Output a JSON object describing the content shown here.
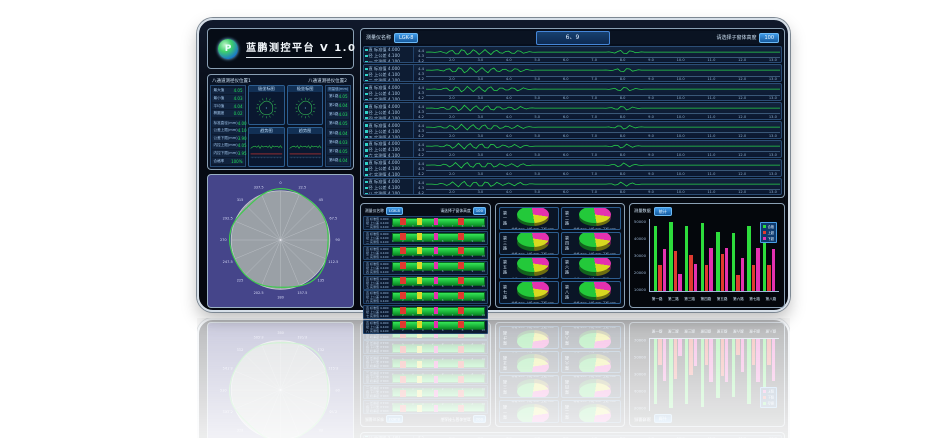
{
  "app": {
    "title": "蓝鹏测控平台",
    "version": "V 1.0"
  },
  "colors": {
    "accent_blue": "#2a7fd4",
    "value_green": "#1fe05a",
    "wave_green": "#27d14b",
    "bar_green": "#2ddd3c",
    "bar_red": "#e03a2f",
    "bar_magenta": "#e431b0",
    "pie_yellow": "#d9d920",
    "radar_bg": "#45458a",
    "radar_circle": "#9aa0a6"
  },
  "wave_panel": {
    "instrument_label": "测量仪名称",
    "instrument_value": "LGK-8",
    "center_value": "6、9",
    "height_label": "请选择子窗体高度",
    "height_value": "100",
    "y_ticks": [
      "4.4",
      "4.3",
      "4.2"
    ],
    "x_ticks": [
      "2.0",
      "3.0",
      "4.0",
      "5.0",
      "6.0",
      "7.0",
      "8.0",
      "9.0",
      "10.0",
      "11.0",
      "12.0",
      "13.0"
    ],
    "channels": [
      {
        "name": "直径一",
        "lines": [
          [
            "标准值",
            "4.000"
          ],
          [
            "上公差",
            "4.100"
          ],
          [
            "实测值",
            "4.100"
          ]
        ]
      },
      {
        "name": "直径二",
        "lines": [
          [
            "标准值",
            "4.000"
          ],
          [
            "上公差",
            "4.100"
          ],
          [
            "实测值",
            "4.100"
          ]
        ]
      },
      {
        "name": "直径三",
        "lines": [
          [
            "标准值",
            "4.000"
          ],
          [
            "上公差",
            "4.100"
          ],
          [
            "实测值",
            "4.100"
          ]
        ]
      },
      {
        "name": "直径四",
        "lines": [
          [
            "标准值",
            "4.000"
          ],
          [
            "上公差",
            "4.100"
          ],
          [
            "实测值",
            "4.100"
          ]
        ]
      },
      {
        "name": "直径五",
        "lines": [
          [
            "标准值",
            "4.000"
          ],
          [
            "上公差",
            "4.100"
          ],
          [
            "实测值",
            "4.100"
          ]
        ]
      },
      {
        "name": "直径六",
        "lines": [
          [
            "标准值",
            "4.000"
          ],
          [
            "上公差",
            "4.100"
          ],
          [
            "实测值",
            "4.100"
          ]
        ]
      },
      {
        "name": "直径七",
        "lines": [
          [
            "标准值",
            "4.000"
          ],
          [
            "上公差",
            "4.100"
          ],
          [
            "实测值",
            "4.100"
          ]
        ]
      },
      {
        "name": "直径八",
        "lines": [
          [
            "标准值",
            "4.000"
          ],
          [
            "上公差",
            "4.100"
          ],
          [
            "实测值",
            "4.100"
          ]
        ]
      }
    ]
  },
  "gauge_panel": {
    "unit1_title": "八通道测径仪位置1",
    "unit2_title": "八通道测径仪位置2",
    "polar_title": "极坐标图",
    "trend_title": "趋势图",
    "stats_top": [
      [
        "最大值",
        "4.05"
      ],
      [
        "最小值",
        "4.03"
      ],
      [
        "平均值",
        "4.04"
      ],
      [
        "椭圆度",
        "0.02"
      ]
    ],
    "stats_bottom": [
      [
        "标准直径(mm)",
        "4.00"
      ],
      [
        "公差上限(mm)",
        "4.10"
      ],
      [
        "公差下限(mm)",
        "3.90"
      ],
      [
        "内控上限(mm)",
        "4.05"
      ],
      [
        "内控下限(mm)",
        "3.95"
      ],
      [
        "合格率",
        "100%"
      ]
    ],
    "right_header": "测量值(mm)",
    "right_rows": [
      [
        "第1路",
        "4.05"
      ],
      [
        "第2路",
        "4.04"
      ],
      [
        "第3路",
        "4.03"
      ],
      [
        "第4路",
        "4.05"
      ],
      [
        "第5路",
        "4.04"
      ],
      [
        "第6路",
        "4.03"
      ],
      [
        "第7路",
        "4.05"
      ],
      [
        "第8路",
        "4.04"
      ]
    ]
  },
  "radar_panel": {
    "angle_labels": [
      "0",
      "22.5",
      "45",
      "67.5",
      "90",
      "112.5",
      "135",
      "157.5",
      "180",
      "202.5",
      "225",
      "247.5",
      "270",
      "292.5",
      "315",
      "337.5"
    ]
  },
  "strip_panel": {
    "left_label": "测量仪名称",
    "left_value": "LGK-8",
    "right_label": "请选择子窗体高度",
    "right_value": "100",
    "x_ticks": [
      "1",
      "2",
      "3",
      "4",
      "5",
      "6",
      "7",
      "8",
      "9",
      "10"
    ],
    "markers": [
      {
        "color": "#e03a2f",
        "pos": 9,
        "width": 6
      },
      {
        "color": "#dcd928",
        "pos": 27,
        "width": 5
      },
      {
        "color": "#e431b0",
        "pos": 45,
        "width": 4
      },
      {
        "color": "#e03a2f",
        "pos": 71,
        "width": 6
      }
    ]
  },
  "pie_panel": {
    "cells": [
      "第一路",
      "第二路",
      "第三路",
      "第四路",
      "第五路",
      "第六路",
      "第七路",
      "第八路"
    ],
    "slices": [
      {
        "name": "合格",
        "pct": 50,
        "color": "#23c93a"
      },
      {
        "name": "上超",
        "pct": 30,
        "color": "#e431b0"
      },
      {
        "name": "下超",
        "pct": 20,
        "color": "#d9d920"
      }
    ]
  },
  "bar_panel": {
    "header_label": "测量数据",
    "header_button": "统计",
    "ymax": 50000,
    "y_ticks": [
      "50000",
      "40000",
      "30000",
      "20000",
      "10000"
    ],
    "categories": [
      "第一路",
      "第二路",
      "第三路",
      "第四路",
      "第五路",
      "第六路",
      "第七路",
      "第八路"
    ],
    "series": [
      {
        "name": "合格",
        "color": "#2ddd3c",
        "values": [
          45000,
          48000,
          45000,
          47000,
          41000,
          40000,
          45000,
          45000
        ]
      },
      {
        "name": "上超",
        "color": "#e03a2f",
        "values": [
          18000,
          28000,
          25000,
          18000,
          26000,
          11000,
          18000,
          18000
        ]
      },
      {
        "name": "下超",
        "color": "#e431b0",
        "values": [
          29000,
          12000,
          19000,
          30000,
          30000,
          23000,
          30000,
          29000
        ]
      }
    ]
  }
}
